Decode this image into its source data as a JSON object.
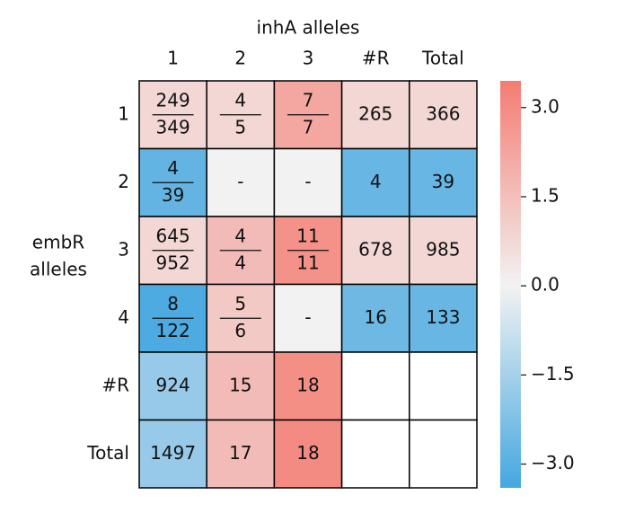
{
  "chart_data": {
    "type": "heatmap",
    "title": "inhA alleles",
    "ylabel": [
      "embR",
      "alleles"
    ],
    "columns": [
      "1",
      "2",
      "3",
      "#R",
      "Total"
    ],
    "rows": [
      "1",
      "2",
      "3",
      "4",
      "#R",
      "Total"
    ],
    "cells": [
      [
        [
          249,
          349
        ],
        [
          4,
          5
        ],
        [
          7,
          7
        ],
        265,
        366
      ],
      [
        [
          4,
          39
        ],
        "-",
        "-",
        4,
        39
      ],
      [
        [
          645,
          952
        ],
        [
          4,
          4
        ],
        [
          11,
          11
        ],
        678,
        985
      ],
      [
        [
          8,
          122
        ],
        [
          5,
          6
        ],
        "-",
        16,
        133
      ],
      [
        924,
        15,
        18,
        null,
        null
      ],
      [
        1497,
        17,
        18,
        null,
        null
      ]
    ],
    "values": [
      [
        0.8,
        0.8,
        2.2,
        0.8,
        0.8
      ],
      [
        -2.8,
        0.0,
        0.0,
        -2.7,
        -2.7
      ],
      [
        0.8,
        1.6,
        2.8,
        0.8,
        0.8
      ],
      [
        -3.2,
        1.2,
        0.0,
        -2.6,
        -2.7
      ],
      [
        -1.8,
        1.6,
        2.9,
        null,
        null
      ],
      [
        -1.8,
        1.6,
        3.0,
        null,
        null
      ]
    ],
    "colormap": [
      "#44a7e0",
      "#f2f2f2",
      "#f47c72"
    ],
    "clim": [
      -3.4,
      3.45
    ],
    "cticks": [
      {
        "value": 3.0,
        "label": "3.0"
      },
      {
        "value": 1.5,
        "label": "1.5"
      },
      {
        "value": 0.0,
        "label": "0.0"
      },
      {
        "value": -1.5,
        "label": "−1.5"
      },
      {
        "value": -3.0,
        "label": "−3.0"
      }
    ]
  }
}
